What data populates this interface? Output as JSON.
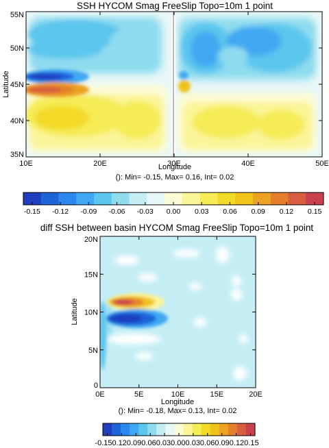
{
  "chart_data": [
    {
      "type": "heatmap",
      "title": "SSH HYCOM Smag FreeSlip Topo=10m 1 point",
      "xlabel": "Longitude",
      "ylabel": "Latitude",
      "x_ticks": [
        "10E",
        "20E",
        "30E",
        "40E",
        "50E"
      ],
      "y_ticks": [
        "35N",
        "40N",
        "45N",
        "50N",
        "55N"
      ],
      "xlim": [
        10,
        50
      ],
      "ylim": [
        35,
        55
      ],
      "stats": "(): Min= -0.15, Max= 0.16, Int= 0.02",
      "min": -0.15,
      "max": 0.16,
      "interval": 0.02,
      "colorbar": {
        "labels": [
          "-0.15",
          "-0.12",
          "-0.09",
          "-0.06",
          "-0.03",
          "0.00",
          "0.03",
          "0.06",
          "0.09",
          "0.12",
          "0.15"
        ],
        "colors": [
          "#1f3fbf",
          "#1f63d9",
          "#2b86ee",
          "#3fa8f2",
          "#5cc6ee",
          "#8fdcef",
          "#c4eef4",
          "#e8f7f7",
          "#fbfbd6",
          "#fbf59a",
          "#f6ec56",
          "#f2da28",
          "#efc21c",
          "#eca222",
          "#e57f2c",
          "#d95d40",
          "#c9404f"
        ]
      }
    },
    {
      "type": "heatmap",
      "title": "diff SSH between basin HYCOM Smag FreeSlip Topo=10m 1 point",
      "xlabel": "Longitude",
      "ylabel": "Latitude",
      "x_ticks": [
        "0E",
        "5E",
        "10E",
        "15E",
        "20E"
      ],
      "y_ticks": [
        "0",
        "5N",
        "10N",
        "15N",
        "20N"
      ],
      "xlim": [
        0,
        20
      ],
      "ylim": [
        0,
        20
      ],
      "stats": "(): Min= -0.18, Max= 0.13, Int= 0.02",
      "min": -0.18,
      "max": 0.13,
      "interval": 0.02,
      "colorbar": {
        "labels": [
          "-0.15",
          "-0.12",
          "-0.09",
          "-0.06",
          "-0.03",
          "0.00",
          "0.03",
          "0.06",
          "0.09",
          "0.12",
          "0.15"
        ],
        "label_text": "-0.150.120.090.060.030.000.030.060.090.120.15",
        "colors": [
          "#1f3fbf",
          "#1f63d9",
          "#2b86ee",
          "#3fa8f2",
          "#5cc6ee",
          "#8fdcef",
          "#c4eef4",
          "#e8f7f7",
          "#fbfbd6",
          "#fbf59a",
          "#f6ec56",
          "#f2da28",
          "#efc21c",
          "#eca222",
          "#e57f2c",
          "#d95d40",
          "#c9404f"
        ]
      }
    }
  ]
}
